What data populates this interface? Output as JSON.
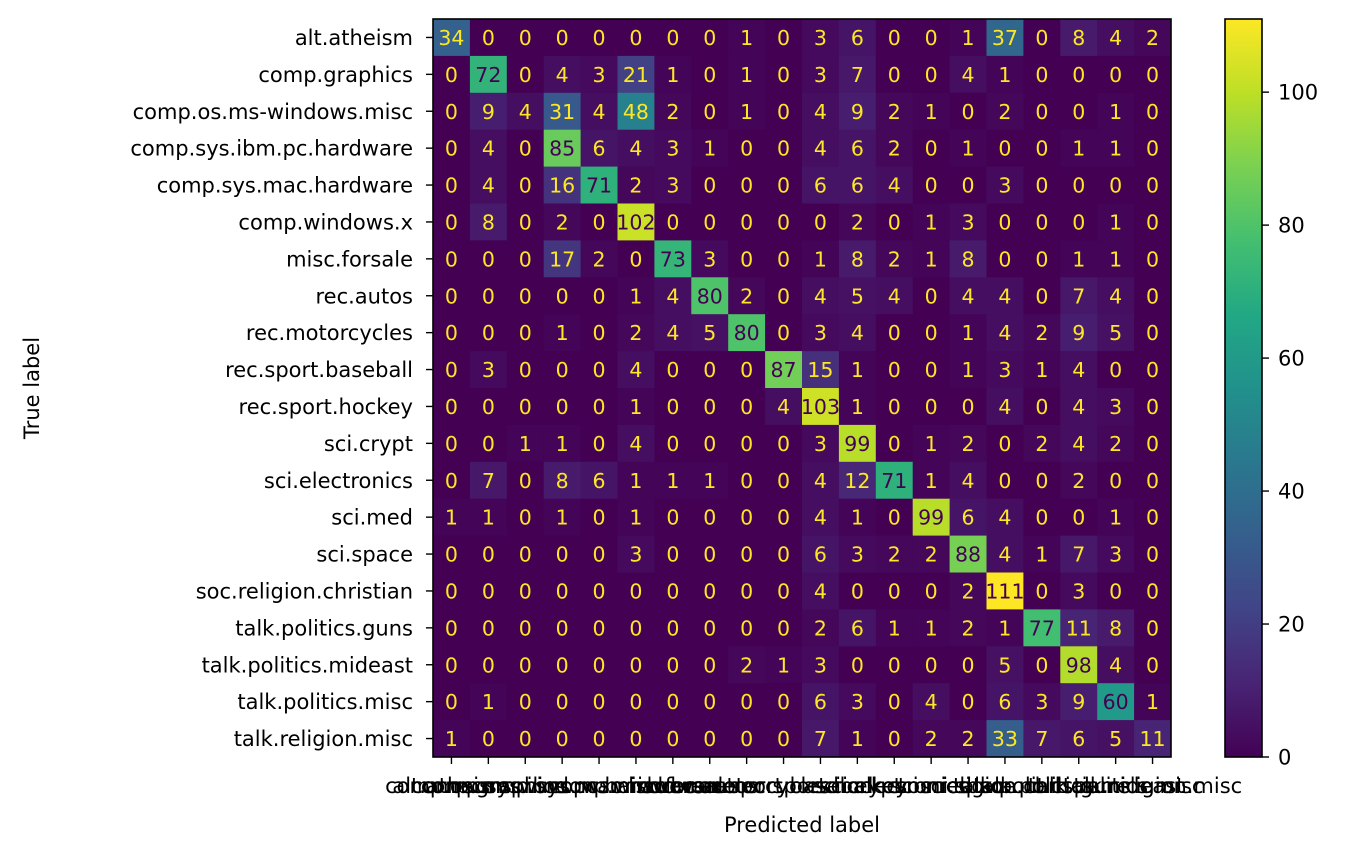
{
  "chart_data": {
    "type": "heatmap",
    "title": "",
    "xlabel": "Predicted label",
    "ylabel": "True label",
    "labels": [
      "alt.atheism",
      "comp.graphics",
      "comp.os.ms-windows.misc",
      "comp.sys.ibm.pc.hardware",
      "comp.sys.mac.hardware",
      "comp.windows.x",
      "misc.forsale",
      "rec.autos",
      "rec.motorcycles",
      "rec.sport.baseball",
      "rec.sport.hockey",
      "sci.crypt",
      "sci.electronics",
      "sci.med",
      "sci.space",
      "soc.religion.christian",
      "talk.politics.guns",
      "talk.politics.mideast",
      "talk.politics.misc",
      "talk.religion.misc"
    ],
    "matrix": [
      [
        34,
        0,
        0,
        0,
        0,
        0,
        0,
        0,
        1,
        0,
        3,
        6,
        0,
        0,
        1,
        37,
        0,
        8,
        4,
        2
      ],
      [
        0,
        72,
        0,
        4,
        3,
        21,
        1,
        0,
        1,
        0,
        3,
        7,
        0,
        0,
        4,
        1,
        0,
        0,
        0,
        0
      ],
      [
        0,
        9,
        4,
        31,
        4,
        48,
        2,
        0,
        1,
        0,
        4,
        9,
        2,
        1,
        0,
        2,
        0,
        0,
        1,
        0
      ],
      [
        0,
        4,
        0,
        85,
        6,
        4,
        3,
        1,
        0,
        0,
        4,
        6,
        2,
        0,
        1,
        0,
        0,
        1,
        1,
        0
      ],
      [
        0,
        4,
        0,
        16,
        71,
        2,
        3,
        0,
        0,
        0,
        6,
        6,
        4,
        0,
        0,
        3,
        0,
        0,
        0,
        0
      ],
      [
        0,
        8,
        0,
        2,
        0,
        102,
        0,
        0,
        0,
        0,
        0,
        2,
        0,
        1,
        3,
        0,
        0,
        0,
        1,
        0
      ],
      [
        0,
        0,
        0,
        17,
        2,
        0,
        73,
        3,
        0,
        0,
        1,
        8,
        2,
        1,
        8,
        0,
        0,
        1,
        1,
        0
      ],
      [
        0,
        0,
        0,
        0,
        0,
        1,
        4,
        80,
        2,
        0,
        4,
        5,
        4,
        0,
        4,
        4,
        0,
        7,
        4,
        0
      ],
      [
        0,
        0,
        0,
        1,
        0,
        2,
        4,
        5,
        80,
        0,
        3,
        4,
        0,
        0,
        1,
        4,
        2,
        9,
        5,
        0
      ],
      [
        0,
        3,
        0,
        0,
        0,
        4,
        0,
        0,
        0,
        87,
        15,
        1,
        0,
        0,
        1,
        3,
        1,
        4,
        0,
        0
      ],
      [
        0,
        0,
        0,
        0,
        0,
        1,
        0,
        0,
        0,
        4,
        103,
        1,
        0,
        0,
        0,
        4,
        0,
        4,
        3,
        0
      ],
      [
        0,
        0,
        1,
        1,
        0,
        4,
        0,
        0,
        0,
        0,
        3,
        99,
        0,
        1,
        2,
        0,
        2,
        4,
        2,
        0
      ],
      [
        0,
        7,
        0,
        8,
        6,
        1,
        1,
        1,
        0,
        0,
        4,
        12,
        71,
        1,
        4,
        0,
        0,
        2,
        0,
        0
      ],
      [
        1,
        1,
        0,
        1,
        0,
        1,
        0,
        0,
        0,
        0,
        4,
        1,
        0,
        99,
        6,
        4,
        0,
        0,
        1,
        0
      ],
      [
        0,
        0,
        0,
        0,
        0,
        3,
        0,
        0,
        0,
        0,
        6,
        3,
        2,
        2,
        88,
        4,
        1,
        7,
        3,
        0
      ],
      [
        0,
        0,
        0,
        0,
        0,
        0,
        0,
        0,
        0,
        0,
        4,
        0,
        0,
        0,
        2,
        111,
        0,
        3,
        0,
        0
      ],
      [
        0,
        0,
        0,
        0,
        0,
        0,
        0,
        0,
        0,
        0,
        2,
        6,
        1,
        1,
        2,
        1,
        77,
        11,
        8,
        0
      ],
      [
        0,
        0,
        0,
        0,
        0,
        0,
        0,
        0,
        2,
        1,
        3,
        0,
        0,
        0,
        0,
        5,
        0,
        98,
        4,
        0
      ],
      [
        0,
        1,
        0,
        0,
        0,
        0,
        0,
        0,
        0,
        0,
        6,
        3,
        0,
        4,
        0,
        6,
        3,
        9,
        60,
        1
      ],
      [
        1,
        0,
        0,
        0,
        0,
        0,
        0,
        0,
        0,
        0,
        7,
        1,
        0,
        2,
        2,
        33,
        7,
        6,
        5,
        11
      ]
    ],
    "colormap": "viridis",
    "vmin": 0,
    "vmax": 111,
    "colorbar_ticks": [
      0,
      20,
      40,
      60,
      80,
      100
    ]
  }
}
